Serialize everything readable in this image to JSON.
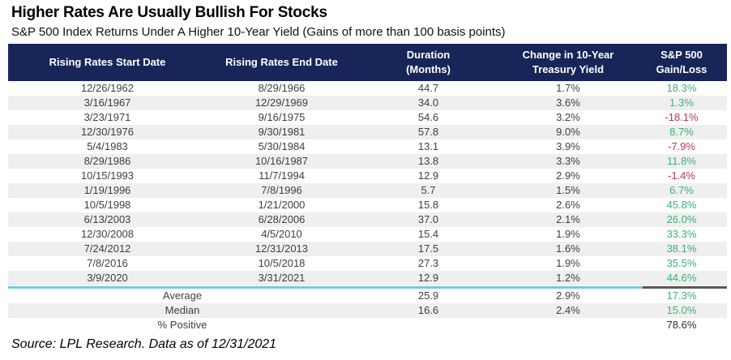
{
  "title": "Higher Rates Are Usually Bullish For Stocks",
  "subtitle": "S&P 500 Index Returns Under A Higher 10-Year Yield (Gains of more than 100 basis points)",
  "source_note": "Source: LPL Research. Data as of 12/31/2021",
  "colors": {
    "navy": "#182558",
    "green": "#3bb273",
    "red": "#b63a49",
    "cyan": "#74c8e4",
    "gray": "#595959",
    "alt_row": "#efefef"
  },
  "chart_data": {
    "type": "table",
    "title": "Higher Rates Are Usually Bullish For Stocks",
    "subtitle": "S&P 500 Index Returns Under A Higher 10-Year Yield (Gains of more than 100 basis points)",
    "columns": [
      "Rising Rates Start Date",
      "Rising Rates End Date",
      "Duration\n(Months)",
      "Change in 10-Year\nTreasury Yield",
      "S&P 500\nGain/Loss"
    ],
    "rows": [
      [
        "12/26/1962",
        "8/29/1966",
        "44.7",
        "1.7%",
        "18.3%",
        "green"
      ],
      [
        "3/16/1967",
        "12/29/1969",
        "34.0",
        "3.6%",
        "1.3%",
        "green"
      ],
      [
        "3/23/1971",
        "9/16/1975",
        "54.6",
        "3.2%",
        "-18.1%",
        "red"
      ],
      [
        "12/30/1976",
        "9/30/1981",
        "57.8",
        "9.0%",
        "8.7%",
        "green"
      ],
      [
        "5/4/1983",
        "5/30/1984",
        "13.1",
        "3.9%",
        "-7.9%",
        "red"
      ],
      [
        "8/29/1986",
        "10/16/1987",
        "13.8",
        "3.3%",
        "11.8%",
        "green"
      ],
      [
        "10/15/1993",
        "11/7/1994",
        "12.9",
        "2.9%",
        "-1.4%",
        "red"
      ],
      [
        "1/19/1996",
        "7/8/1996",
        "5.7",
        "1.5%",
        "6.7%",
        "green"
      ],
      [
        "10/5/1998",
        "1/21/2000",
        "15.8",
        "2.6%",
        "45.8%",
        "green"
      ],
      [
        "6/13/2003",
        "6/28/2006",
        "37.0",
        "2.1%",
        "26.0%",
        "green"
      ],
      [
        "12/30/2008",
        "4/5/2010",
        "15.4",
        "1.9%",
        "33.3%",
        "green"
      ],
      [
        "7/24/2012",
        "12/31/2013",
        "17.5",
        "1.6%",
        "38.1%",
        "green"
      ],
      [
        "7/8/2016",
        "10/5/2018",
        "27.3",
        "1.9%",
        "35.5%",
        "green"
      ],
      [
        "3/9/2020",
        "3/31/2021",
        "12.9",
        "1.2%",
        "44.6%",
        "green"
      ]
    ],
    "summary": [
      {
        "label": "Average",
        "duration": "25.9",
        "change": "2.9%",
        "gain": "17.3%",
        "gain_color": "green"
      },
      {
        "label": "Median",
        "duration": "16.6",
        "change": "2.4%",
        "gain": "15.0%",
        "gain_color": "green"
      },
      {
        "label": "% Positive",
        "duration": "",
        "change": "",
        "gain": "78.6%",
        "gain_color": "black"
      }
    ],
    "source": "Source: LPL Research. Data as of 12/31/2021"
  }
}
